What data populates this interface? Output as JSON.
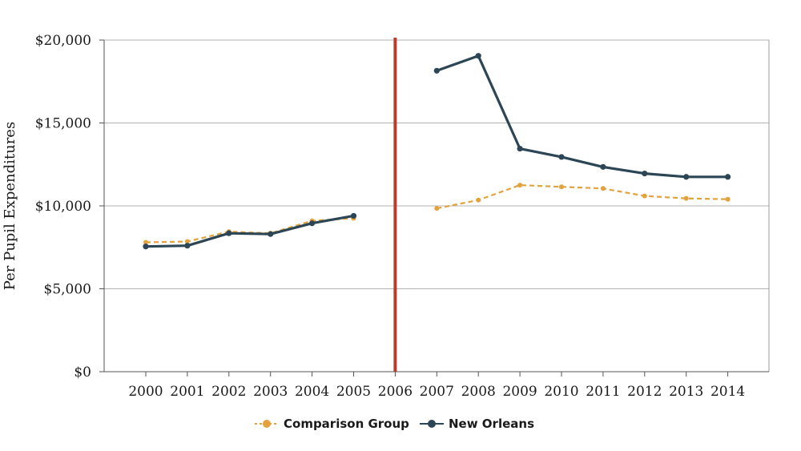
{
  "chart_data": {
    "type": "line",
    "xlabel": "",
    "ylabel": "Per Pupil Expenditures",
    "ylim": [
      0,
      20000
    ],
    "yticks": [
      0,
      5000,
      10000,
      15000,
      20000
    ],
    "ytick_labels": [
      "$0",
      "$5,000",
      "$10,000",
      "$15,000",
      "$20,000"
    ],
    "categories": [
      "2000",
      "2001",
      "2002",
      "2003",
      "2004",
      "2005",
      "2006",
      "2007",
      "2008",
      "2009",
      "2010",
      "2011",
      "2012",
      "2013",
      "2014"
    ],
    "grid": "horizontal",
    "legend_position": "bottom",
    "series": [
      {
        "name": "Comparison Group",
        "color": "#E3A23B",
        "style": "dashed",
        "values": [
          7800,
          7850,
          8450,
          8350,
          9100,
          9250,
          null,
          9850,
          10350,
          11250,
          11150,
          11050,
          10600,
          10450,
          10400
        ]
      },
      {
        "name": "New Orleans",
        "color": "#2C4656",
        "style": "solid",
        "values": [
          7550,
          7600,
          8350,
          8300,
          8950,
          9400,
          null,
          18150,
          19050,
          13450,
          12950,
          12350,
          11950,
          11750,
          11750
        ]
      }
    ],
    "annotations": [
      {
        "type": "vertical-line",
        "x": "2006",
        "color": "#C0392B"
      }
    ]
  }
}
